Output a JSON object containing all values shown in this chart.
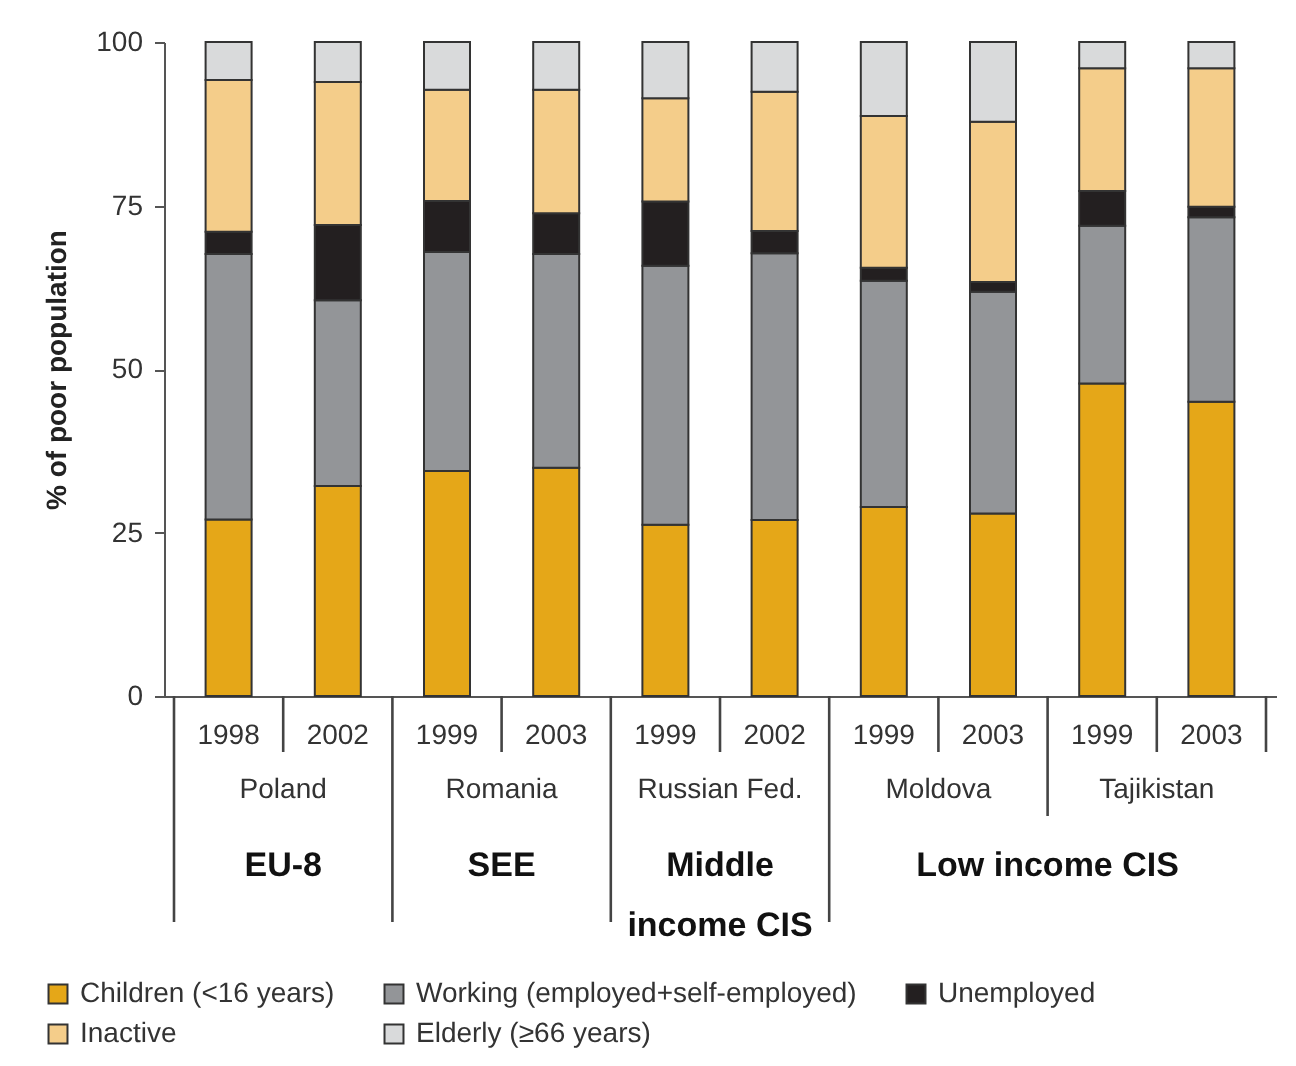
{
  "chart_data": {
    "type": "bar",
    "stacked": true,
    "ylabel": "% of poor population",
    "categories": [
      "1998",
      "2002",
      "1999",
      "2003",
      "1999",
      "2002",
      "1999",
      "2003",
      "1999",
      "2003"
    ],
    "series": [
      {
        "name": "Children (<16 years)",
        "color": "#e5a718",
        "values": [
          27,
          32.1,
          34.4,
          34.9,
          26.2,
          26.9,
          28.9,
          27.9,
          47.8,
          45
        ]
      },
      {
        "name": "Working (employed+self-employed)",
        "color": "#939598",
        "values": [
          40.6,
          28.4,
          33.5,
          32.7,
          39.6,
          40.8,
          34.6,
          33.9,
          24.1,
          28.2
        ]
      },
      {
        "name": "Unemployed",
        "color": "#231f20",
        "values": [
          3.4,
          11.5,
          7.8,
          6.2,
          9.8,
          3.4,
          2,
          1.5,
          5.3,
          1.6
        ]
      },
      {
        "name": "Inactive",
        "color": "#f4cd8a",
        "values": [
          23.2,
          21.9,
          17,
          18.9,
          15.8,
          21.3,
          23.2,
          24.5,
          18.8,
          21.2
        ]
      },
      {
        "name": "Elderly (≥66 years)",
        "color": "#d9dadb",
        "values": [
          5.8,
          6.1,
          7.3,
          7.3,
          8.6,
          7.6,
          11.3,
          12.2,
          4,
          4
        ]
      }
    ],
    "ylim": [
      0,
      100
    ],
    "yticks": [
      0,
      25,
      50,
      75,
      100
    ],
    "grid": false,
    "legend": "bottom",
    "annotations": [
      "Poland",
      "Romania",
      "Russian Fed.",
      "Moldova",
      "Tajikistan",
      "EU-8",
      "SEE",
      "Middle income CIS",
      "Low income CIS"
    ]
  }
}
